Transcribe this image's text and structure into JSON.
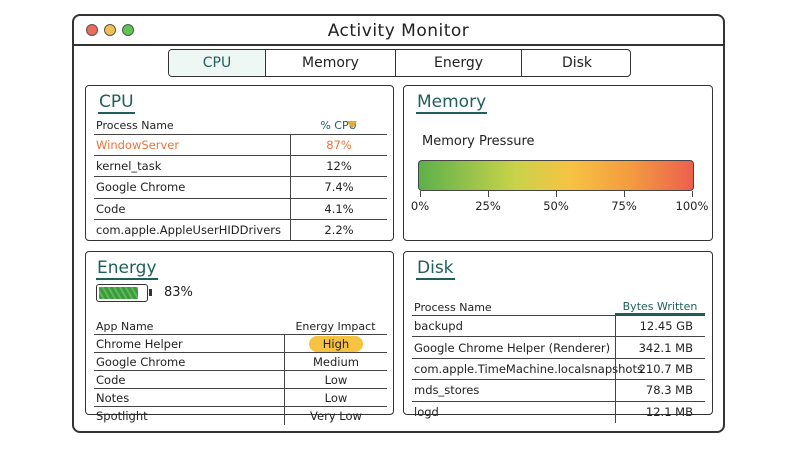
{
  "window": {
    "title": "Activity Monitor"
  },
  "tabs": [
    "CPU",
    "Memory",
    "Energy",
    "Disk"
  ],
  "cpu": {
    "title": "CPU",
    "columns": [
      "Process Name",
      "% CPU"
    ],
    "rows": [
      [
        "WindowServer",
        "87%"
      ],
      [
        "kernel_task",
        "12%"
      ],
      [
        "Google Chrome",
        "7.4%"
      ],
      [
        "Code",
        "4.1%"
      ],
      [
        "com.apple.AppleUserHIDDrivers",
        "2.2%"
      ]
    ]
  },
  "memory": {
    "title": "Memory",
    "label": "Memory Pressure",
    "scale": [
      "0%",
      "25%",
      "50%",
      "75%",
      "100%"
    ]
  },
  "energy": {
    "title": "Energy",
    "battery": "83%",
    "columns": [
      "App Name",
      "Energy Impact"
    ],
    "rows": [
      [
        "Chrome Helper",
        "High"
      ],
      [
        "Google Chrome",
        "Medium"
      ],
      [
        "Code",
        "Low"
      ],
      [
        "Notes",
        "Low"
      ],
      [
        "Spotlight",
        "Very Low"
      ]
    ]
  },
  "disk": {
    "title": "Disk",
    "columns": [
      "Process Name",
      "Bytes Written"
    ],
    "rows": [
      [
        "backupd",
        "12.45 GB"
      ],
      [
        "Google Chrome Helper (Renderer)",
        "342.1 MB"
      ],
      [
        "com.apple.TimeMachine.localsnapshots",
        "210.7 MB"
      ],
      [
        "mds_stores",
        "78.3 MB"
      ],
      [
        "logd",
        "12.1 MB"
      ]
    ]
  }
}
